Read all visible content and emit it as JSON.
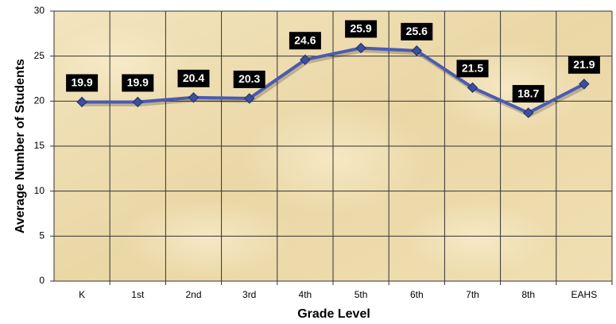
{
  "chart_data": {
    "type": "line",
    "x_label": "Grade Level",
    "y_label": "Average Number of Students",
    "categories": [
      "K",
      "1st",
      "2nd",
      "3rd",
      "4th",
      "5th",
      "6th",
      "7th",
      "8th",
      "EAHS"
    ],
    "series": [
      {
        "name": "Average Number of Students",
        "color": "#4a5ab4",
        "values": [
          19.9,
          19.9,
          20.4,
          20.3,
          24.6,
          25.9,
          25.6,
          21.5,
          18.7,
          21.9
        ]
      }
    ],
    "ylim": [
      0,
      30
    ],
    "yticks": [
      0,
      5,
      10,
      15,
      20,
      25,
      30
    ],
    "grid": true
  }
}
